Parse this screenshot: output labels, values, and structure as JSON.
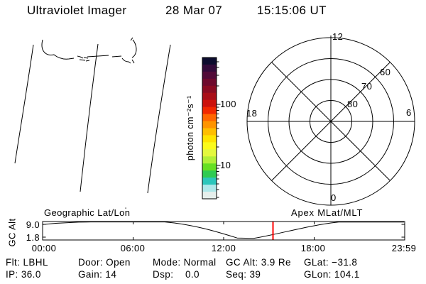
{
  "header": {
    "title": "Ultraviolet Imager",
    "date": "28 Mar 07",
    "time": "15:15:06 UT"
  },
  "colorbar": {
    "unit_label": "photon cm⁻²s⁻¹",
    "scale": "log",
    "tick_labels": [
      "100",
      "10"
    ],
    "band_colors_top_to_bottom": [
      "#0c0c2e",
      "#330b3a",
      "#520b38",
      "#6e0a2d",
      "#8a0b22",
      "#a90e18",
      "#cc120c",
      "#f12800",
      "#ff6600",
      "#ff9400",
      "#ffbe00",
      "#ffe400",
      "#fbfb1a",
      "#e4f83e",
      "#b2ef38",
      "#66df22",
      "#2fcb52",
      "#2cc6bb",
      "#afe8ea",
      "#e6efec"
    ]
  },
  "polar_plot": {
    "mlt_top": "12",
    "mlt_left": "18",
    "mlt_right": "6",
    "mlt_bottom": "0",
    "mlat_label_80": "80",
    "mlat_label_70": "70",
    "mlat_label_60": "60"
  },
  "bottom_panel": {
    "left_header": "Geographic Lat/Lon",
    "right_header": "Apex MLat/MLT",
    "y_axis_label": "GC Alt",
    "y_tick_top": "9.0",
    "y_tick_bottom": "1.8",
    "x_tick_0": "00:00",
    "x_tick_1": "06:00",
    "x_tick_2": "12:00",
    "x_tick_3": "18:00",
    "x_tick_4": "23:59",
    "marker_color": "#ff0000"
  },
  "status_bar": {
    "columns": [
      {
        "row1": "Flt: LBHL",
        "row2": "IP: 36.0"
      },
      {
        "row1": "Door: Open",
        "row2": "Gain: 14"
      },
      {
        "row1": "Mode: Normal",
        "row2": "Dsp:    0.0"
      },
      {
        "row1": "GC Alt: 3.9 Re",
        "row2": "Seq: 39"
      },
      {
        "row1": "GLat: −31.8",
        "row2": "GLon: 104.1"
      }
    ]
  },
  "chart_data": [
    {
      "type": "line",
      "title": "Spacecraft geocentric altitude vs universal time",
      "ylabel": "GC Alt",
      "y_tick_values": [
        9.0,
        1.8
      ],
      "x_tick_labels": [
        "00:00",
        "06:00",
        "12:00",
        "18:00",
        "23:59"
      ],
      "x": [
        "00:00",
        "02:00",
        "04:00",
        "06:00",
        "08:00",
        "10:00",
        "12:00",
        "13:00",
        "13:40",
        "14:20",
        "15:15",
        "16:00",
        "18:00",
        "20:00",
        "22:00",
        "23:59"
      ],
      "y": [
        8.4,
        9.8,
        10.2,
        10.2,
        9.9,
        6.5,
        3.0,
        1.5,
        0.6,
        0.8,
        3.9,
        5.2,
        8.0,
        9.9,
        10.2,
        10.2
      ],
      "clipped_above": 9.5,
      "annotations": [
        "Geographic Lat/Lon",
        "Apex MLat/MLT"
      ],
      "marker": {
        "type": "vertical-line",
        "x": "15:15:06",
        "color": "#ff0000"
      },
      "grid": false
    },
    {
      "type": "other",
      "subtype": "polar-grid-apex-mlat-mlt",
      "mlt_tick_labels": [
        "12",
        "18",
        "6",
        "0"
      ],
      "mlat_ring_labels": [
        80,
        70,
        60
      ],
      "rings": 4,
      "spokes_deg_step": 45,
      "data_plotted": "none (empty grid)"
    },
    {
      "type": "other",
      "subtype": "colorbar",
      "scale": "log",
      "unit": "photon cm⁻²s⁻¹",
      "tick_values": [
        100,
        10
      ]
    }
  ]
}
